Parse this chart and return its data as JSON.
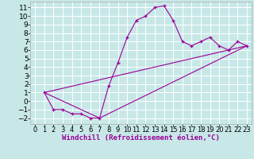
{
  "xlabel": "Windchill (Refroidissement éolien,°C)",
  "background_color": "#c8e8e8",
  "line_color": "#990099",
  "grid_color": "#ffffff",
  "xlim": [
    -0.5,
    23.5
  ],
  "ylim": [
    -2.7,
    11.7
  ],
  "xticks": [
    0,
    1,
    2,
    3,
    4,
    5,
    6,
    7,
    8,
    9,
    10,
    11,
    12,
    13,
    14,
    15,
    16,
    17,
    18,
    19,
    20,
    21,
    22,
    23
  ],
  "yticks": [
    -2,
    -1,
    0,
    1,
    2,
    3,
    4,
    5,
    6,
    7,
    8,
    9,
    10,
    11
  ],
  "line1_x": [
    1,
    2,
    3,
    4,
    5,
    6,
    7,
    8,
    9,
    10,
    11,
    12,
    13,
    14,
    15,
    16,
    17,
    18,
    19,
    20,
    21,
    22,
    23
  ],
  "line1_y": [
    1,
    -1,
    -1,
    -1.5,
    -1.5,
    -2,
    -2,
    1.8,
    4.5,
    7.5,
    9.5,
    10.0,
    11.0,
    11.2,
    9.5,
    7.0,
    6.5,
    7.0,
    7.5,
    6.5,
    6.0,
    7.0,
    6.5
  ],
  "line2_x": [
    1,
    7,
    23
  ],
  "line2_y": [
    1,
    -2,
    6.5
  ],
  "line3_x": [
    1,
    23
  ],
  "line3_y": [
    1,
    6.5
  ],
  "font_size_xlabel": 6.5,
  "font_size_ytick": 6.5,
  "font_size_xtick": 6.0
}
